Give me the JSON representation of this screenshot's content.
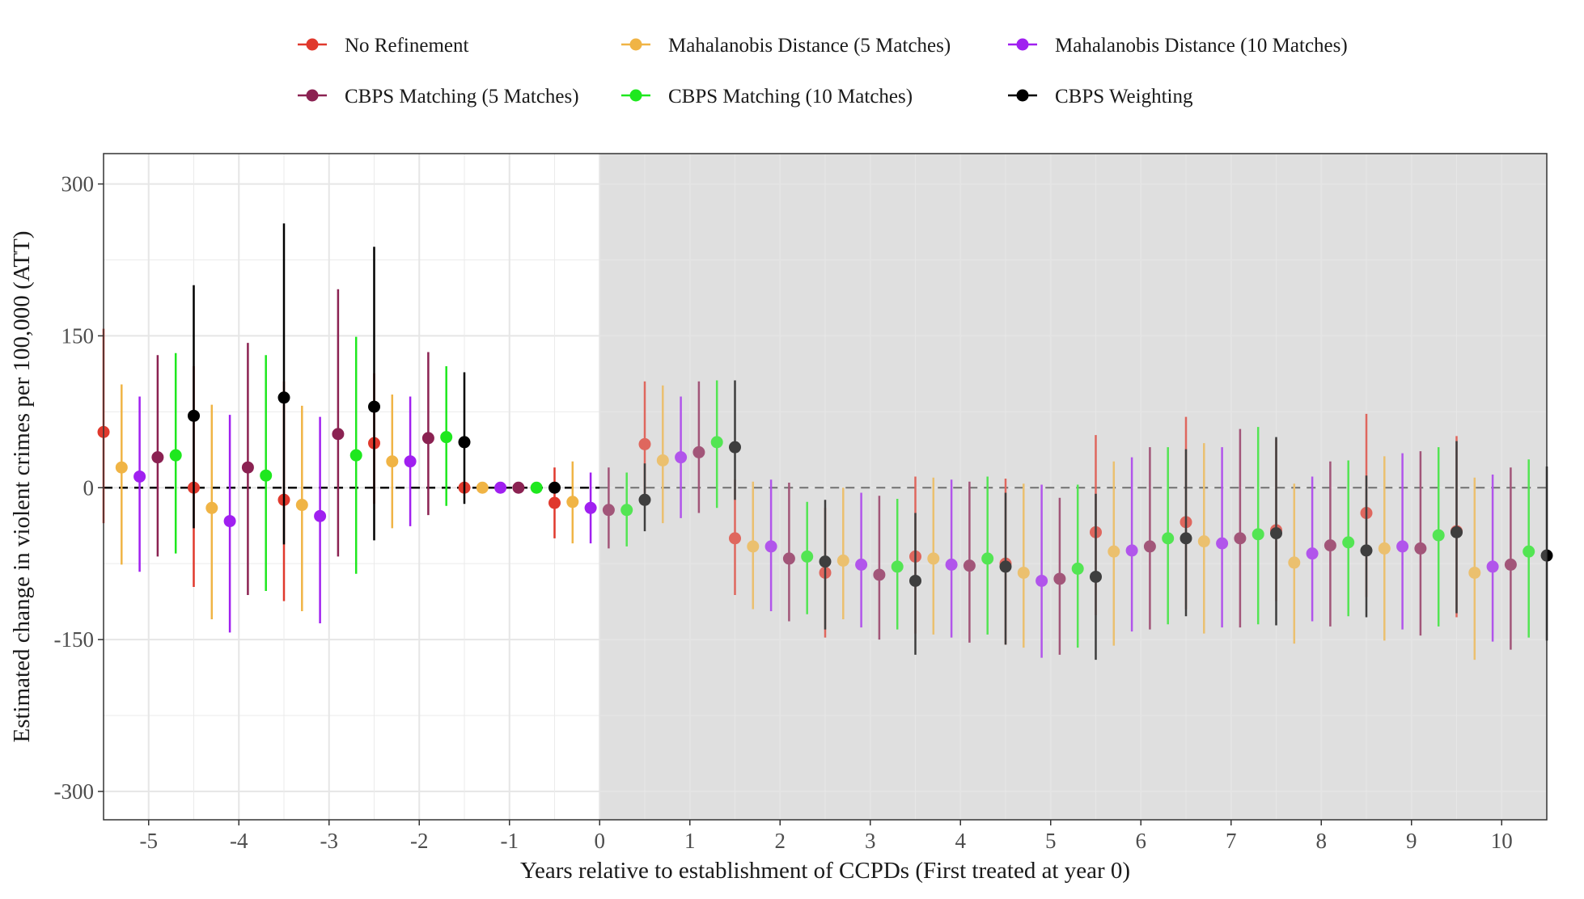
{
  "chart_data": {
    "type": "scatter",
    "subtype": "event-study point estimates with confidence intervals",
    "xlabel": "Years relative to establishment of CCPDs (First treated at year 0)",
    "ylabel": "Estimated change in violent crimes per 100,000 (ATT)",
    "xlim": [
      -5.5,
      10.5
    ],
    "ylim": [
      -328,
      330
    ],
    "x_ticks": [
      -5,
      -4,
      -3,
      -2,
      -1,
      0,
      1,
      2,
      3,
      4,
      5,
      6,
      7,
      8,
      9,
      10
    ],
    "x_tick_labels": [
      "-5",
      "-4",
      "-3",
      "-2",
      "-1",
      "0",
      "1",
      "2",
      "3",
      "4",
      "5",
      "6",
      "7",
      "8",
      "9",
      "10"
    ],
    "y_ticks": [
      -300,
      -150,
      0,
      150,
      300
    ],
    "y_tick_labels": [
      "-300",
      "-150",
      "0",
      "150",
      "300"
    ],
    "reference_line_y": 0,
    "treatment_start_x": 0,
    "shaded_region": "post-treatment (x >= 0)",
    "legend_position": "top",
    "grid": true,
    "series": [
      {
        "name": "No Refinement",
        "color": "#e0392d",
        "x": [
          -5,
          -4,
          -3,
          -2,
          -1,
          0,
          1,
          2,
          3,
          4,
          5,
          6,
          7,
          8,
          9,
          10
        ],
        "estimate": [
          55,
          0,
          -12,
          44,
          0,
          -15,
          43,
          -50,
          -84,
          -68,
          -75,
          -44,
          -34,
          -42,
          -25,
          -43
        ],
        "ci_low": [
          -35,
          -98,
          -112,
          -16,
          -1,
          -50,
          -10,
          -106,
          -148,
          -144,
          -155,
          -126,
          -120,
          -112,
          -108,
          -128
        ],
        "ci_high": [
          157,
          120,
          105,
          113,
          1,
          20,
          105,
          8,
          -20,
          11,
          9,
          52,
          70,
          48,
          73,
          51
        ]
      },
      {
        "name": "Mahalanobis Distance (5 Matches)",
        "color": "#f0b445",
        "x": [
          -5,
          -4,
          -3,
          -2,
          -1,
          0,
          1,
          2,
          3,
          4,
          5,
          6,
          7,
          8,
          9,
          10
        ],
        "estimate": [
          20,
          -20,
          -17,
          26,
          0,
          -14,
          27,
          -58,
          -72,
          -70,
          -84,
          -63,
          -53,
          -74,
          -60,
          -84
        ],
        "ci_low": [
          -76,
          -130,
          -122,
          -40,
          -1,
          -55,
          -35,
          -120,
          -130,
          -145,
          -158,
          -156,
          -144,
          -154,
          -151,
          -170
        ],
        "ci_high": [
          102,
          82,
          81,
          92,
          1,
          26,
          101,
          6,
          0,
          10,
          4,
          26,
          44,
          4,
          31,
          10
        ]
      },
      {
        "name": "Mahalanobis Distance (10 Matches)",
        "color": "#a020f0",
        "x": [
          -5,
          -4,
          -3,
          -2,
          -1,
          0,
          1,
          2,
          3,
          4,
          5,
          6,
          7,
          8,
          9,
          10
        ],
        "estimate": [
          11,
          -33,
          -28,
          26,
          0,
          -20,
          30,
          -58,
          -76,
          -76,
          -92,
          -62,
          -55,
          -65,
          -58,
          -78
        ],
        "ci_low": [
          -83,
          -143,
          -134,
          -38,
          -1,
          -55,
          -30,
          -122,
          -138,
          -148,
          -168,
          -142,
          -138,
          -132,
          -140,
          -152
        ],
        "ci_high": [
          90,
          72,
          70,
          90,
          1,
          15,
          90,
          8,
          -5,
          8,
          3,
          30,
          40,
          11,
          34,
          13
        ]
      },
      {
        "name": "CBPS Matching (5 Matches)",
        "color": "#8b2252",
        "x": [
          -5,
          -4,
          -3,
          -2,
          -1,
          0,
          1,
          2,
          3,
          4,
          5,
          6,
          7,
          8,
          9,
          10
        ],
        "estimate": [
          30,
          20,
          53,
          49,
          0,
          -22,
          35,
          -70,
          -86,
          -77,
          -90,
          -58,
          -50,
          -57,
          -60,
          -76
        ],
        "ci_low": [
          -68,
          -106,
          -68,
          -27,
          -1,
          -60,
          -25,
          -132,
          -150,
          -153,
          -165,
          -140,
          -138,
          -137,
          -146,
          -160
        ],
        "ci_high": [
          131,
          143,
          196,
          134,
          1,
          20,
          105,
          5,
          -8,
          6,
          -10,
          40,
          58,
          26,
          36,
          20
        ]
      },
      {
        "name": "CBPS Matching (10 Matches)",
        "color": "#1ee81e",
        "x": [
          -5,
          -4,
          -3,
          -2,
          -1,
          0,
          1,
          2,
          3,
          4,
          5,
          6,
          7,
          8,
          9,
          10
        ],
        "estimate": [
          32,
          12,
          32,
          50,
          0,
          -22,
          45,
          -68,
          -78,
          -70,
          -80,
          -50,
          -46,
          -54,
          -47,
          -63
        ],
        "ci_low": [
          -65,
          -102,
          -85,
          -18,
          -1,
          -58,
          -20,
          -125,
          -140,
          -145,
          -158,
          -135,
          -135,
          -127,
          -137,
          -148
        ],
        "ci_high": [
          133,
          131,
          149,
          120,
          1,
          15,
          106,
          -14,
          -11,
          11,
          3,
          40,
          60,
          27,
          40,
          28
        ]
      },
      {
        "name": "CBPS Weighting",
        "color": "#000000",
        "x": [
          -5,
          -4,
          -3,
          -2,
          -1,
          0,
          1,
          2,
          3,
          4,
          5,
          6,
          7,
          8,
          9,
          10
        ],
        "estimate": [
          71,
          89,
          80,
          45,
          0,
          -12,
          40,
          -73,
          -92,
          -78,
          -88,
          -50,
          -45,
          -62,
          -44,
          -67
        ],
        "ci_low": [
          -40,
          -56,
          -52,
          -16,
          -1,
          -43,
          -12,
          -140,
          -165,
          -155,
          -170,
          -127,
          -136,
          -128,
          -124,
          -151
        ],
        "ci_high": [
          200,
          261,
          238,
          114,
          1,
          24,
          106,
          -12,
          -25,
          -5,
          -6,
          38,
          50,
          12,
          46,
          21
        ]
      }
    ]
  },
  "legend": {
    "items": [
      {
        "label": "No Refinement",
        "color": "#e0392d"
      },
      {
        "label": "Mahalanobis Distance (5 Matches)",
        "color": "#f0b445"
      },
      {
        "label": "Mahalanobis Distance (10 Matches)",
        "color": "#a020f0"
      },
      {
        "label": "CBPS Matching (5 Matches)",
        "color": "#8b2252"
      },
      {
        "label": "CBPS Matching (10 Matches)",
        "color": "#1ee81e"
      },
      {
        "label": "CBPS Weighting",
        "color": "#000000"
      }
    ]
  }
}
